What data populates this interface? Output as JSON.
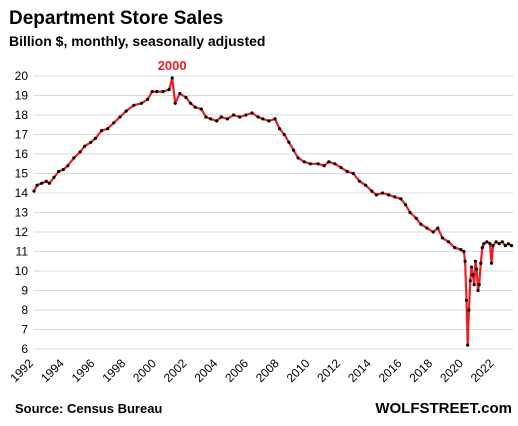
{
  "chart_data": {
    "type": "line",
    "title": "Department  Store Sales",
    "subtitle": "Billion $, monthly, seasonally adjusted",
    "source": "Source: Census Bureau",
    "brand": "WOLFSTREET.com",
    "annotation": {
      "label": "2000",
      "x": 2001.0,
      "y": 19.9
    },
    "ylim": [
      6,
      20
    ],
    "yticks": [
      6,
      7,
      8,
      9,
      10,
      11,
      12,
      13,
      14,
      15,
      16,
      17,
      18,
      19,
      20
    ],
    "xlim": [
      1992,
      2023.2
    ],
    "xticks": [
      "1992",
      "1994",
      "1996",
      "1998",
      "2000",
      "2002",
      "2004",
      "2006",
      "2008",
      "2010",
      "2012",
      "2014",
      "2016",
      "2018",
      "2020",
      "2022"
    ],
    "grid": {
      "horizontal": true,
      "vertical": false
    },
    "series": [
      {
        "line_color": "#ee1c25",
        "marker_color": "#000000",
        "points": [
          [
            1992.0,
            14.1
          ],
          [
            1992.2,
            14.4
          ],
          [
            1992.5,
            14.5
          ],
          [
            1992.8,
            14.6
          ],
          [
            1993.0,
            14.5
          ],
          [
            1993.3,
            14.8
          ],
          [
            1993.6,
            15.1
          ],
          [
            1993.9,
            15.2
          ],
          [
            1994.2,
            15.4
          ],
          [
            1994.6,
            15.8
          ],
          [
            1995.0,
            16.1
          ],
          [
            1995.3,
            16.4
          ],
          [
            1995.7,
            16.6
          ],
          [
            1996.0,
            16.8
          ],
          [
            1996.4,
            17.2
          ],
          [
            1996.8,
            17.3
          ],
          [
            1997.2,
            17.6
          ],
          [
            1997.6,
            17.9
          ],
          [
            1998.0,
            18.2
          ],
          [
            1998.5,
            18.5
          ],
          [
            1999.0,
            18.6
          ],
          [
            1999.4,
            18.8
          ],
          [
            1999.7,
            19.2
          ],
          [
            2000.0,
            19.2
          ],
          [
            2000.4,
            19.2
          ],
          [
            2000.8,
            19.3
          ],
          [
            2001.0,
            19.9
          ],
          [
            2001.2,
            18.6
          ],
          [
            2001.5,
            19.1
          ],
          [
            2001.9,
            18.9
          ],
          [
            2002.2,
            18.6
          ],
          [
            2002.5,
            18.4
          ],
          [
            2002.9,
            18.3
          ],
          [
            2003.2,
            17.9
          ],
          [
            2003.5,
            17.8
          ],
          [
            2003.9,
            17.7
          ],
          [
            2004.2,
            17.9
          ],
          [
            2004.6,
            17.8
          ],
          [
            2005.0,
            18.0
          ],
          [
            2005.4,
            17.9
          ],
          [
            2005.8,
            18.0
          ],
          [
            2006.2,
            18.1
          ],
          [
            2006.6,
            17.9
          ],
          [
            2006.9,
            17.8
          ],
          [
            2007.3,
            17.7
          ],
          [
            2007.7,
            17.8
          ],
          [
            2008.0,
            17.3
          ],
          [
            2008.3,
            17.0
          ],
          [
            2008.6,
            16.6
          ],
          [
            2008.9,
            16.2
          ],
          [
            2009.2,
            15.8
          ],
          [
            2009.6,
            15.6
          ],
          [
            2010.0,
            15.5
          ],
          [
            2010.5,
            15.5
          ],
          [
            2010.9,
            15.4
          ],
          [
            2011.2,
            15.6
          ],
          [
            2011.6,
            15.5
          ],
          [
            2012.0,
            15.3
          ],
          [
            2012.4,
            15.1
          ],
          [
            2012.8,
            15.0
          ],
          [
            2013.2,
            14.6
          ],
          [
            2013.6,
            14.4
          ],
          [
            2014.0,
            14.1
          ],
          [
            2014.3,
            13.9
          ],
          [
            2014.7,
            14.0
          ],
          [
            2015.1,
            13.9
          ],
          [
            2015.5,
            13.8
          ],
          [
            2015.9,
            13.7
          ],
          [
            2016.2,
            13.4
          ],
          [
            2016.5,
            13.0
          ],
          [
            2016.9,
            12.7
          ],
          [
            2017.2,
            12.4
          ],
          [
            2017.6,
            12.2
          ],
          [
            2018.0,
            12.0
          ],
          [
            2018.3,
            12.2
          ],
          [
            2018.6,
            11.7
          ],
          [
            2019.0,
            11.5
          ],
          [
            2019.4,
            11.2
          ],
          [
            2019.8,
            11.1
          ],
          [
            2020.0,
            11.0
          ],
          [
            2020.08,
            10.5
          ],
          [
            2020.17,
            8.5
          ],
          [
            2020.25,
            6.2
          ],
          [
            2020.33,
            8.0
          ],
          [
            2020.42,
            9.5
          ],
          [
            2020.5,
            10.2
          ],
          [
            2020.58,
            9.8
          ],
          [
            2020.67,
            9.3
          ],
          [
            2020.75,
            10.5
          ],
          [
            2020.83,
            10.1
          ],
          [
            2020.92,
            9.0
          ],
          [
            2021.0,
            9.3
          ],
          [
            2021.1,
            10.4
          ],
          [
            2021.2,
            11.2
          ],
          [
            2021.3,
            11.4
          ],
          [
            2021.5,
            11.5
          ],
          [
            2021.7,
            11.4
          ],
          [
            2021.8,
            10.4
          ],
          [
            2021.9,
            11.3
          ],
          [
            2022.1,
            11.5
          ],
          [
            2022.3,
            11.4
          ],
          [
            2022.5,
            11.5
          ],
          [
            2022.7,
            11.3
          ],
          [
            2022.9,
            11.4
          ],
          [
            2023.1,
            11.3
          ]
        ]
      }
    ]
  }
}
